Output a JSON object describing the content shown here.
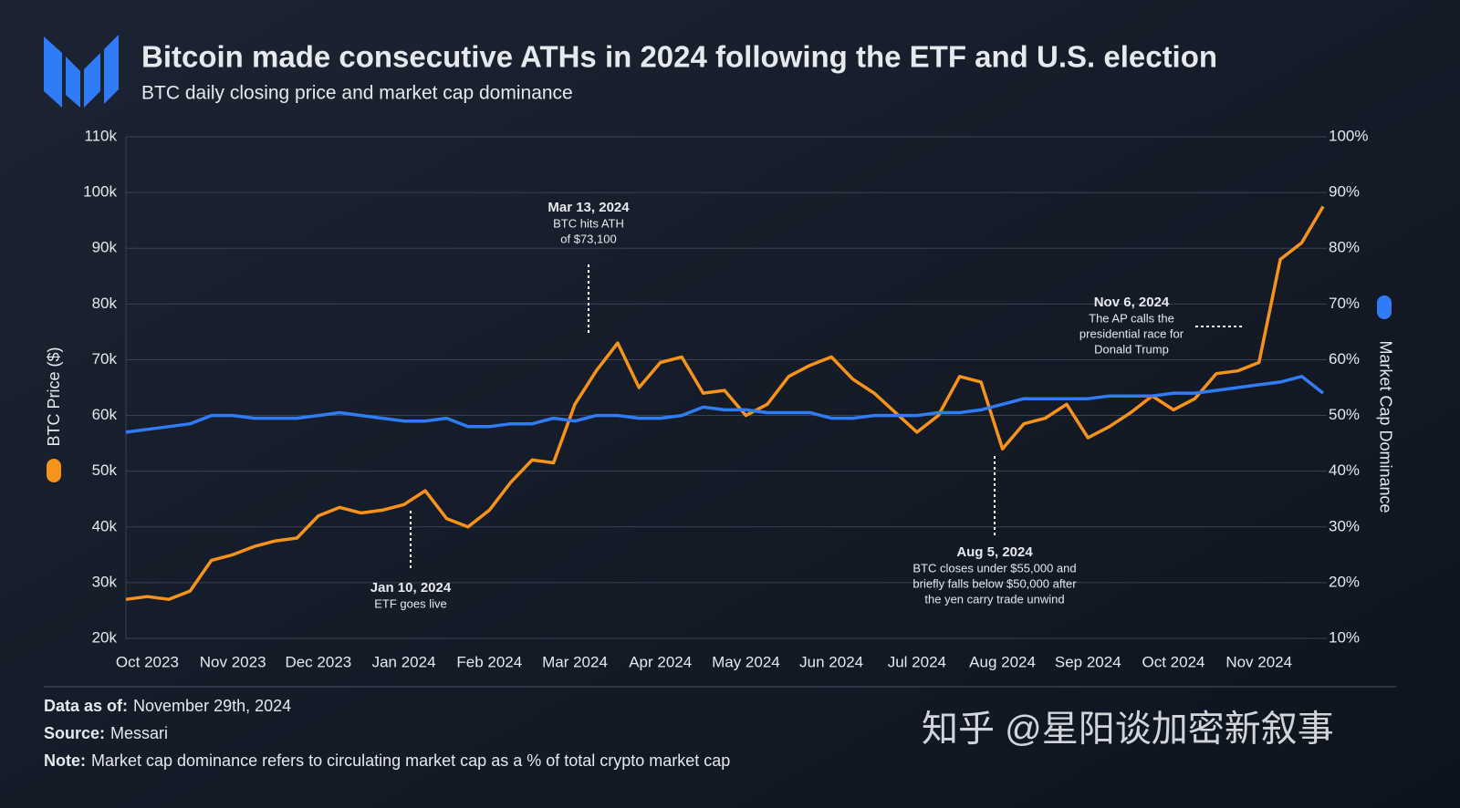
{
  "chart_data": {
    "type": "line",
    "title": "Bitcoin made consecutive ATHs in 2024 following the ETF and U.S. election",
    "subtitle": "BTC daily closing price and market cap dominance",
    "categories": [
      null,
      "Oct 2023",
      null,
      null,
      null,
      "Nov 2023",
      null,
      null,
      null,
      "Dec 2023",
      null,
      null,
      null,
      "Jan 2024",
      null,
      null,
      null,
      "Feb 2024",
      null,
      null,
      null,
      "Mar 2024",
      null,
      null,
      null,
      "Apr 2024",
      null,
      null,
      null,
      "May 2024",
      null,
      null,
      null,
      "Jun 2024",
      null,
      null,
      null,
      "Jul 2024",
      null,
      null,
      null,
      "Aug 2024",
      null,
      null,
      null,
      "Sep 2024",
      null,
      null,
      null,
      "Oct 2024",
      null,
      null,
      null,
      "Nov 2024",
      null,
      null,
      null
    ],
    "series": [
      {
        "name": "BTC Price ($)",
        "color": "#f7931a",
        "values": [
          27000,
          27500,
          27000,
          28500,
          34000,
          35000,
          36500,
          37500,
          38000,
          42000,
          43500,
          42500,
          43000,
          44000,
          46500,
          41500,
          40000,
          43000,
          48000,
          52000,
          51500,
          62000,
          68000,
          73000,
          65000,
          69500,
          70500,
          64000,
          64500,
          60000,
          62000,
          67000,
          69000,
          70500,
          66500,
          64000,
          60500,
          57000,
          60000,
          67000,
          66000,
          54000,
          58500,
          59500,
          62000,
          56000,
          58000,
          60500,
          63500,
          61000,
          63000,
          67500,
          68000,
          69500,
          88000,
          91000,
          97500
        ]
      },
      {
        "name": "Market Cap Dominance",
        "color": "#2f7cf6",
        "axis": "y2",
        "values": [
          47,
          47.5,
          48,
          48.5,
          50,
          50,
          49.5,
          49.5,
          49.5,
          50,
          50.5,
          50,
          49.5,
          49,
          49,
          49.5,
          48,
          48,
          48.5,
          48.5,
          49.5,
          49,
          50,
          50,
          49.5,
          49.5,
          50,
          51.5,
          51,
          51,
          50.5,
          50.5,
          50.5,
          49.5,
          49.5,
          50,
          50,
          50,
          50.5,
          50.5,
          51,
          52,
          53,
          53,
          53,
          53,
          53.5,
          53.5,
          53.5,
          54,
          54,
          54.5,
          55,
          55.5,
          56,
          57,
          54
        ]
      }
    ],
    "ylim": [
      20000,
      110000
    ],
    "yticks": [
      {
        "value": 20000,
        "label": "20k"
      },
      {
        "value": 30000,
        "label": "30k"
      },
      {
        "value": 40000,
        "label": "40k"
      },
      {
        "value": 50000,
        "label": "50k"
      },
      {
        "value": 60000,
        "label": "60k"
      },
      {
        "value": 70000,
        "label": "70k"
      },
      {
        "value": 80000,
        "label": "80k"
      },
      {
        "value": 90000,
        "label": "90k"
      },
      {
        "value": 100000,
        "label": "100k"
      },
      {
        "value": 110000,
        "label": "110k"
      }
    ],
    "y2lim": [
      10,
      100
    ],
    "y2ticks": [
      {
        "value": 10,
        "label": "10%"
      },
      {
        "value": 20,
        "label": "20%"
      },
      {
        "value": 30,
        "label": "30%"
      },
      {
        "value": 40,
        "label": "40%"
      },
      {
        "value": 50,
        "label": "50%"
      },
      {
        "value": 60,
        "label": "60%"
      },
      {
        "value": 70,
        "label": "70%"
      },
      {
        "value": 80,
        "label": "80%"
      },
      {
        "value": 90,
        "label": "90%"
      },
      {
        "value": 100,
        "label": "100%"
      }
    ],
    "grid": true,
    "annotations": [
      {
        "date": "Mar 13, 2024",
        "lines": [
          "BTC hits ATH",
          "of $73,100"
        ]
      },
      {
        "date": "Jan 10, 2024",
        "lines": [
          "ETF goes live"
        ]
      },
      {
        "date": "Aug 5, 2024",
        "lines": [
          "BTC closes under $55,000 and",
          "briefly falls below $50,000 after",
          "the yen carry trade unwind"
        ]
      },
      {
        "date": "Nov 6, 2024",
        "lines": [
          "The AP calls the",
          "presidential race for",
          "Donald Trump"
        ]
      }
    ]
  },
  "footer": [
    {
      "label": "Data as of:",
      "text": "November 29th, 2024"
    },
    {
      "label": "Source:",
      "text": "Messari"
    },
    {
      "label": "Note:",
      "text": "Market cap dominance refers to circulating market cap as a % of total crypto market cap"
    }
  ],
  "watermark": "知乎 @星阳谈加密新叙事"
}
